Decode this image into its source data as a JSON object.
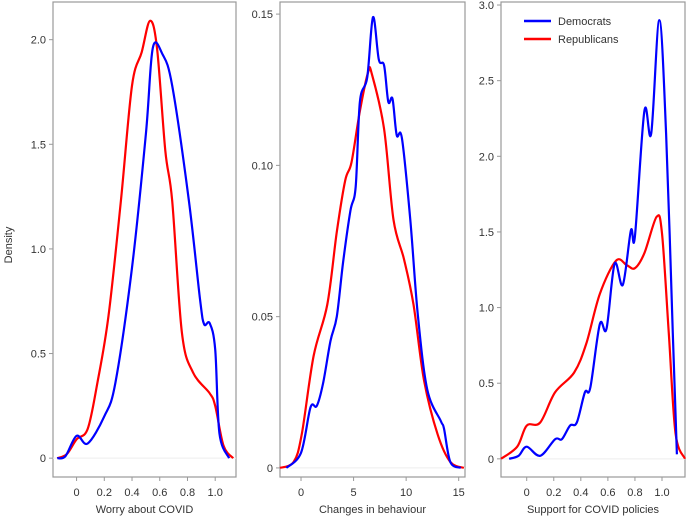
{
  "chart_data": {
    "type": "line",
    "ylabel": "Density",
    "legend": {
      "placement": "top-left of third panel",
      "entries": [
        {
          "name": "Democrats",
          "color": "#0000ff"
        },
        {
          "name": "Republicans",
          "color": "#ff0000"
        }
      ]
    },
    "panels": [
      {
        "xlabel": "Worry about COVID",
        "xlim": [
          -0.17,
          1.15
        ],
        "ylim": [
          -0.09,
          2.18
        ],
        "xticks": [
          "0",
          "0.2",
          "0.4",
          "0.6",
          "0.8",
          "1.0"
        ],
        "xtick_values": [
          0,
          0.2,
          0.4,
          0.6,
          0.8,
          1.0
        ],
        "yticks": [
          "0",
          "0.5",
          "1.0",
          "1.5",
          "2.0"
        ],
        "ytick_values": [
          0,
          0.5,
          1.0,
          1.5,
          2.0
        ],
        "series": [
          {
            "name": "Democrats",
            "points": [
              [
                -0.14,
                0
              ],
              [
                -0.08,
                0.01
              ],
              [
                0,
                0.107
              ],
              [
                0.08,
                0.07
              ],
              [
                0.2,
                0.2
              ],
              [
                0.28,
                0.36
              ],
              [
                0.4,
                0.91
              ],
              [
                0.5,
                1.55
              ],
              [
                0.55,
                1.96
              ],
              [
                0.62,
                1.93
              ],
              [
                0.69,
                1.78
              ],
              [
                0.81,
                1.23
              ],
              [
                0.89,
                0.76
              ],
              [
                0.92,
                0.64
              ],
              [
                0.96,
                0.645
              ],
              [
                1.0,
                0.52
              ],
              [
                1.03,
                0.12
              ],
              [
                1.1,
                0
              ]
            ]
          },
          {
            "name": "Republicans",
            "points": [
              [
                -0.14,
                0
              ],
              [
                -0.07,
                0.02
              ],
              [
                0,
                0.09
              ],
              [
                0.08,
                0.14
              ],
              [
                0.15,
                0.36
              ],
              [
                0.23,
                0.68
              ],
              [
                0.32,
                1.23
              ],
              [
                0.4,
                1.78
              ],
              [
                0.47,
                1.94
              ],
              [
                0.53,
                2.09
              ],
              [
                0.58,
                1.96
              ],
              [
                0.64,
                1.47
              ],
              [
                0.69,
                1.23
              ],
              [
                0.76,
                0.6
              ],
              [
                0.84,
                0.41
              ],
              [
                0.96,
                0.31
              ],
              [
                1.0,
                0.25
              ],
              [
                1.06,
                0.06
              ],
              [
                1.13,
                0
              ]
            ]
          }
        ]
      },
      {
        "xlabel": "Changes in behaviour",
        "xlim": [
          -2.0,
          15.6
        ],
        "ylim": [
          -0.003,
          0.154
        ],
        "xticks": [
          "0",
          "5",
          "10",
          "15"
        ],
        "xtick_values": [
          0,
          5,
          10,
          15
        ],
        "yticks": [
          "0",
          "0.05",
          "0.10",
          "0.15"
        ],
        "ytick_values": [
          0,
          0.05,
          0.1,
          0.15
        ],
        "series": [
          {
            "name": "Democrats",
            "points": [
              [
                -1.4,
                0
              ],
              [
                0,
                0.005
              ],
              [
                0.9,
                0.02
              ],
              [
                1.5,
                0.0205
              ],
              [
                2.1,
                0.028
              ],
              [
                2.8,
                0.042
              ],
              [
                3.4,
                0.05
              ],
              [
                4.0,
                0.068
              ],
              [
                4.7,
                0.085
              ],
              [
                5.2,
                0.093
              ],
              [
                5.6,
                0.121
              ],
              [
                6.3,
                0.129
              ],
              [
                6.85,
                0.149
              ],
              [
                7.4,
                0.135
              ],
              [
                7.9,
                0.133
              ],
              [
                8.3,
                0.121
              ],
              [
                8.7,
                0.122
              ],
              [
                9.1,
                0.11
              ],
              [
                9.6,
                0.109
              ],
              [
                10.4,
                0.082
              ],
              [
                11.1,
                0.051
              ],
              [
                12.0,
                0.026
              ],
              [
                13.3,
                0.0155
              ],
              [
                13.6,
                0.013
              ],
              [
                14.2,
                0.002
              ],
              [
                15.2,
                0
              ]
            ]
          },
          {
            "name": "Republicans",
            "points": [
              [
                -2,
                0
              ],
              [
                -0.7,
                0.002
              ],
              [
                0.06,
                0.011
              ],
              [
                1.2,
                0.037
              ],
              [
                2.5,
                0.054
              ],
              [
                3.4,
                0.078
              ],
              [
                4.2,
                0.095
              ],
              [
                4.8,
                0.101
              ],
              [
                5.6,
                0.118
              ],
              [
                6.4,
                0.131
              ],
              [
                6.75,
                0.13
              ],
              [
                7.9,
                0.112
              ],
              [
                8.8,
                0.082
              ],
              [
                9.8,
                0.069
              ],
              [
                10.7,
                0.054
              ],
              [
                11.7,
                0.029
              ],
              [
                13.0,
                0.011
              ],
              [
                14.2,
                0.002
              ],
              [
                15.5,
                0
              ]
            ]
          }
        ]
      },
      {
        "xlabel": "Support for COVID policies",
        "xlim": [
          -0.19,
          1.17
        ],
        "ylim": [
          -0.12,
          3.02
        ],
        "xticks": [
          "0",
          "0.2",
          "0.4",
          "0.6",
          "0.8",
          "1.0"
        ],
        "xtick_values": [
          0,
          0.2,
          0.4,
          0.6,
          0.8,
          1.0
        ],
        "yticks": [
          "0",
          "0.5",
          "1.0",
          "1.5",
          "2.0",
          "2.5",
          "3.0"
        ],
        "ytick_values": [
          0,
          0.5,
          1.0,
          1.5,
          2.0,
          2.5,
          3.0
        ],
        "series": [
          {
            "name": "Democrats",
            "points": [
              [
                -0.13,
                0
              ],
              [
                -0.06,
                0.02
              ],
              [
                0,
                0.08
              ],
              [
                0.1,
                0.02
              ],
              [
                0.21,
                0.13
              ],
              [
                0.26,
                0.13
              ],
              [
                0.32,
                0.22
              ],
              [
                0.37,
                0.24
              ],
              [
                0.43,
                0.44
              ],
              [
                0.47,
                0.47
              ],
              [
                0.54,
                0.89
              ],
              [
                0.59,
                0.86
              ],
              [
                0.65,
                1.29
              ],
              [
                0.71,
                1.15
              ],
              [
                0.77,
                1.51
              ],
              [
                0.8,
                1.47
              ],
              [
                0.87,
                2.3
              ],
              [
                0.92,
                2.15
              ],
              [
                0.98,
                2.9
              ],
              [
                1.03,
                2.15
              ],
              [
                1.08,
                0.83
              ],
              [
                1.11,
                0.03
              ]
            ]
          },
          {
            "name": "Republicans",
            "points": [
              [
                -0.19,
                0
              ],
              [
                -0.07,
                0.08
              ],
              [
                0,
                0.22
              ],
              [
                0.1,
                0.24
              ],
              [
                0.21,
                0.44
              ],
              [
                0.35,
                0.57
              ],
              [
                0.44,
                0.76
              ],
              [
                0.54,
                1.09
              ],
              [
                0.66,
                1.31
              ],
              [
                0.74,
                1.28
              ],
              [
                0.8,
                1.26
              ],
              [
                0.87,
                1.36
              ],
              [
                0.96,
                1.6
              ],
              [
                1.0,
                1.49
              ],
              [
                1.05,
                0.83
              ],
              [
                1.1,
                0.17
              ],
              [
                1.17,
                0
              ]
            ]
          }
        ]
      }
    ]
  }
}
